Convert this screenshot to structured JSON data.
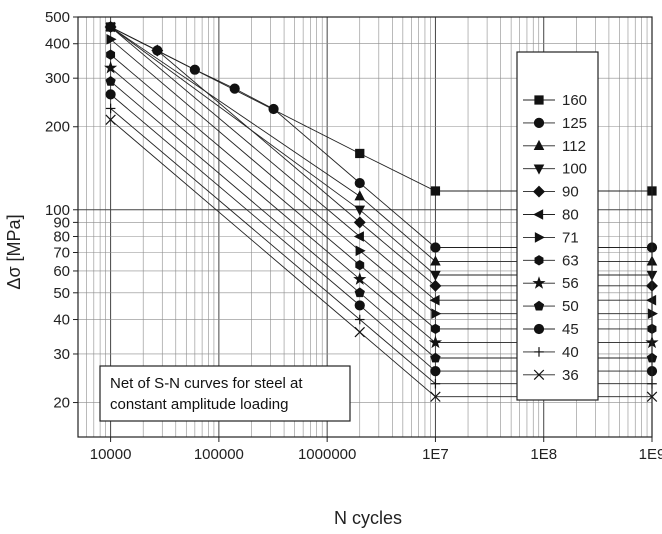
{
  "chart_data": {
    "type": "line",
    "xlabel": "N cycles",
    "ylabel": "Δσ [MPa]",
    "xscale": "log",
    "yscale": "log",
    "xlim": [
      5000,
      1000000000
    ],
    "ylim": [
      15,
      500
    ],
    "grid": true,
    "legend_position": "right",
    "x_ticks": [
      {
        "value": 10000,
        "label": "10000"
      },
      {
        "value": 100000,
        "label": "100000"
      },
      {
        "value": 1000000,
        "label": "1000000"
      },
      {
        "value": 10000000,
        "label": "1E7"
      },
      {
        "value": 100000000,
        "label": "1E8"
      },
      {
        "value": 1000000000,
        "label": "1E9"
      }
    ],
    "y_ticks": [
      {
        "value": 20,
        "label": "20"
      },
      {
        "value": 30,
        "label": "30"
      },
      {
        "value": 40,
        "label": "40"
      },
      {
        "value": 50,
        "label": "50"
      },
      {
        "value": 60,
        "label": "60"
      },
      {
        "value": 70,
        "label": "70"
      },
      {
        "value": 80,
        "label": "80"
      },
      {
        "value": 90,
        "label": "90"
      },
      {
        "value": 100,
        "label": "100"
      },
      {
        "value": 200,
        "label": "200"
      },
      {
        "value": 300,
        "label": "300"
      },
      {
        "value": 400,
        "label": "400"
      },
      {
        "value": 500,
        "label": "500"
      }
    ],
    "annotation": [
      "Net of S-N curves for steel at",
      "constant amplitude loading"
    ],
    "series": [
      {
        "name": "160",
        "marker": "square",
        "points": [
          [
            10000,
            460
          ],
          [
            2000000,
            160
          ],
          [
            10000000,
            117
          ],
          [
            1000000000,
            117
          ]
        ]
      },
      {
        "name": "125",
        "marker": "circle",
        "points": [
          [
            10000,
            460
          ],
          [
            27000,
            378
          ],
          [
            60000,
            322
          ],
          [
            140000,
            275
          ],
          [
            320000,
            232
          ],
          [
            2000000,
            125
          ],
          [
            10000000,
            73
          ],
          [
            1000000000,
            73
          ]
        ]
      },
      {
        "name": "112",
        "marker": "triangle-up",
        "points": [
          [
            10000,
            460
          ],
          [
            2000000,
            112
          ],
          [
            10000000,
            65
          ],
          [
            1000000000,
            65
          ]
        ]
      },
      {
        "name": "100",
        "marker": "triangle-down",
        "points": [
          [
            10000,
            460
          ],
          [
            2000000,
            100
          ],
          [
            10000000,
            58
          ],
          [
            1000000000,
            58
          ]
        ]
      },
      {
        "name": "90",
        "marker": "diamond",
        "points": [
          [
            10000,
            460
          ],
          [
            27000,
            378
          ],
          [
            2000000,
            90
          ],
          [
            10000000,
            53
          ],
          [
            1000000000,
            53
          ]
        ]
      },
      {
        "name": "80",
        "marker": "triangle-left",
        "points": [
          [
            10000,
            460
          ],
          [
            2000000,
            80
          ],
          [
            10000000,
            47
          ],
          [
            1000000000,
            47
          ]
        ]
      },
      {
        "name": "71",
        "marker": "triangle-right",
        "points": [
          [
            10000,
            415
          ],
          [
            2000000,
            71
          ],
          [
            10000000,
            42
          ],
          [
            1000000000,
            42
          ]
        ]
      },
      {
        "name": "63",
        "marker": "hexagon",
        "points": [
          [
            10000,
            365
          ],
          [
            2000000,
            63
          ],
          [
            10000000,
            37
          ],
          [
            1000000000,
            37
          ]
        ]
      },
      {
        "name": "56",
        "marker": "star",
        "points": [
          [
            10000,
            327
          ],
          [
            2000000,
            56
          ],
          [
            10000000,
            33
          ],
          [
            1000000000,
            33
          ]
        ]
      },
      {
        "name": "50",
        "marker": "pentagon",
        "points": [
          [
            10000,
            292
          ],
          [
            2000000,
            50
          ],
          [
            10000000,
            29
          ],
          [
            1000000000,
            29
          ]
        ]
      },
      {
        "name": "45",
        "marker": "circle",
        "points": [
          [
            10000,
            262
          ],
          [
            2000000,
            45
          ],
          [
            10000000,
            26
          ],
          [
            1000000000,
            26
          ]
        ]
      },
      {
        "name": "40",
        "marker": "plus",
        "points": [
          [
            10000,
            233
          ],
          [
            2000000,
            40
          ],
          [
            10000000,
            23.4
          ],
          [
            1000000000,
            23.4
          ]
        ]
      },
      {
        "name": "36",
        "marker": "cross",
        "points": [
          [
            10000,
            212
          ],
          [
            2000000,
            36
          ],
          [
            10000000,
            21
          ],
          [
            1000000000,
            21
          ]
        ]
      }
    ]
  }
}
